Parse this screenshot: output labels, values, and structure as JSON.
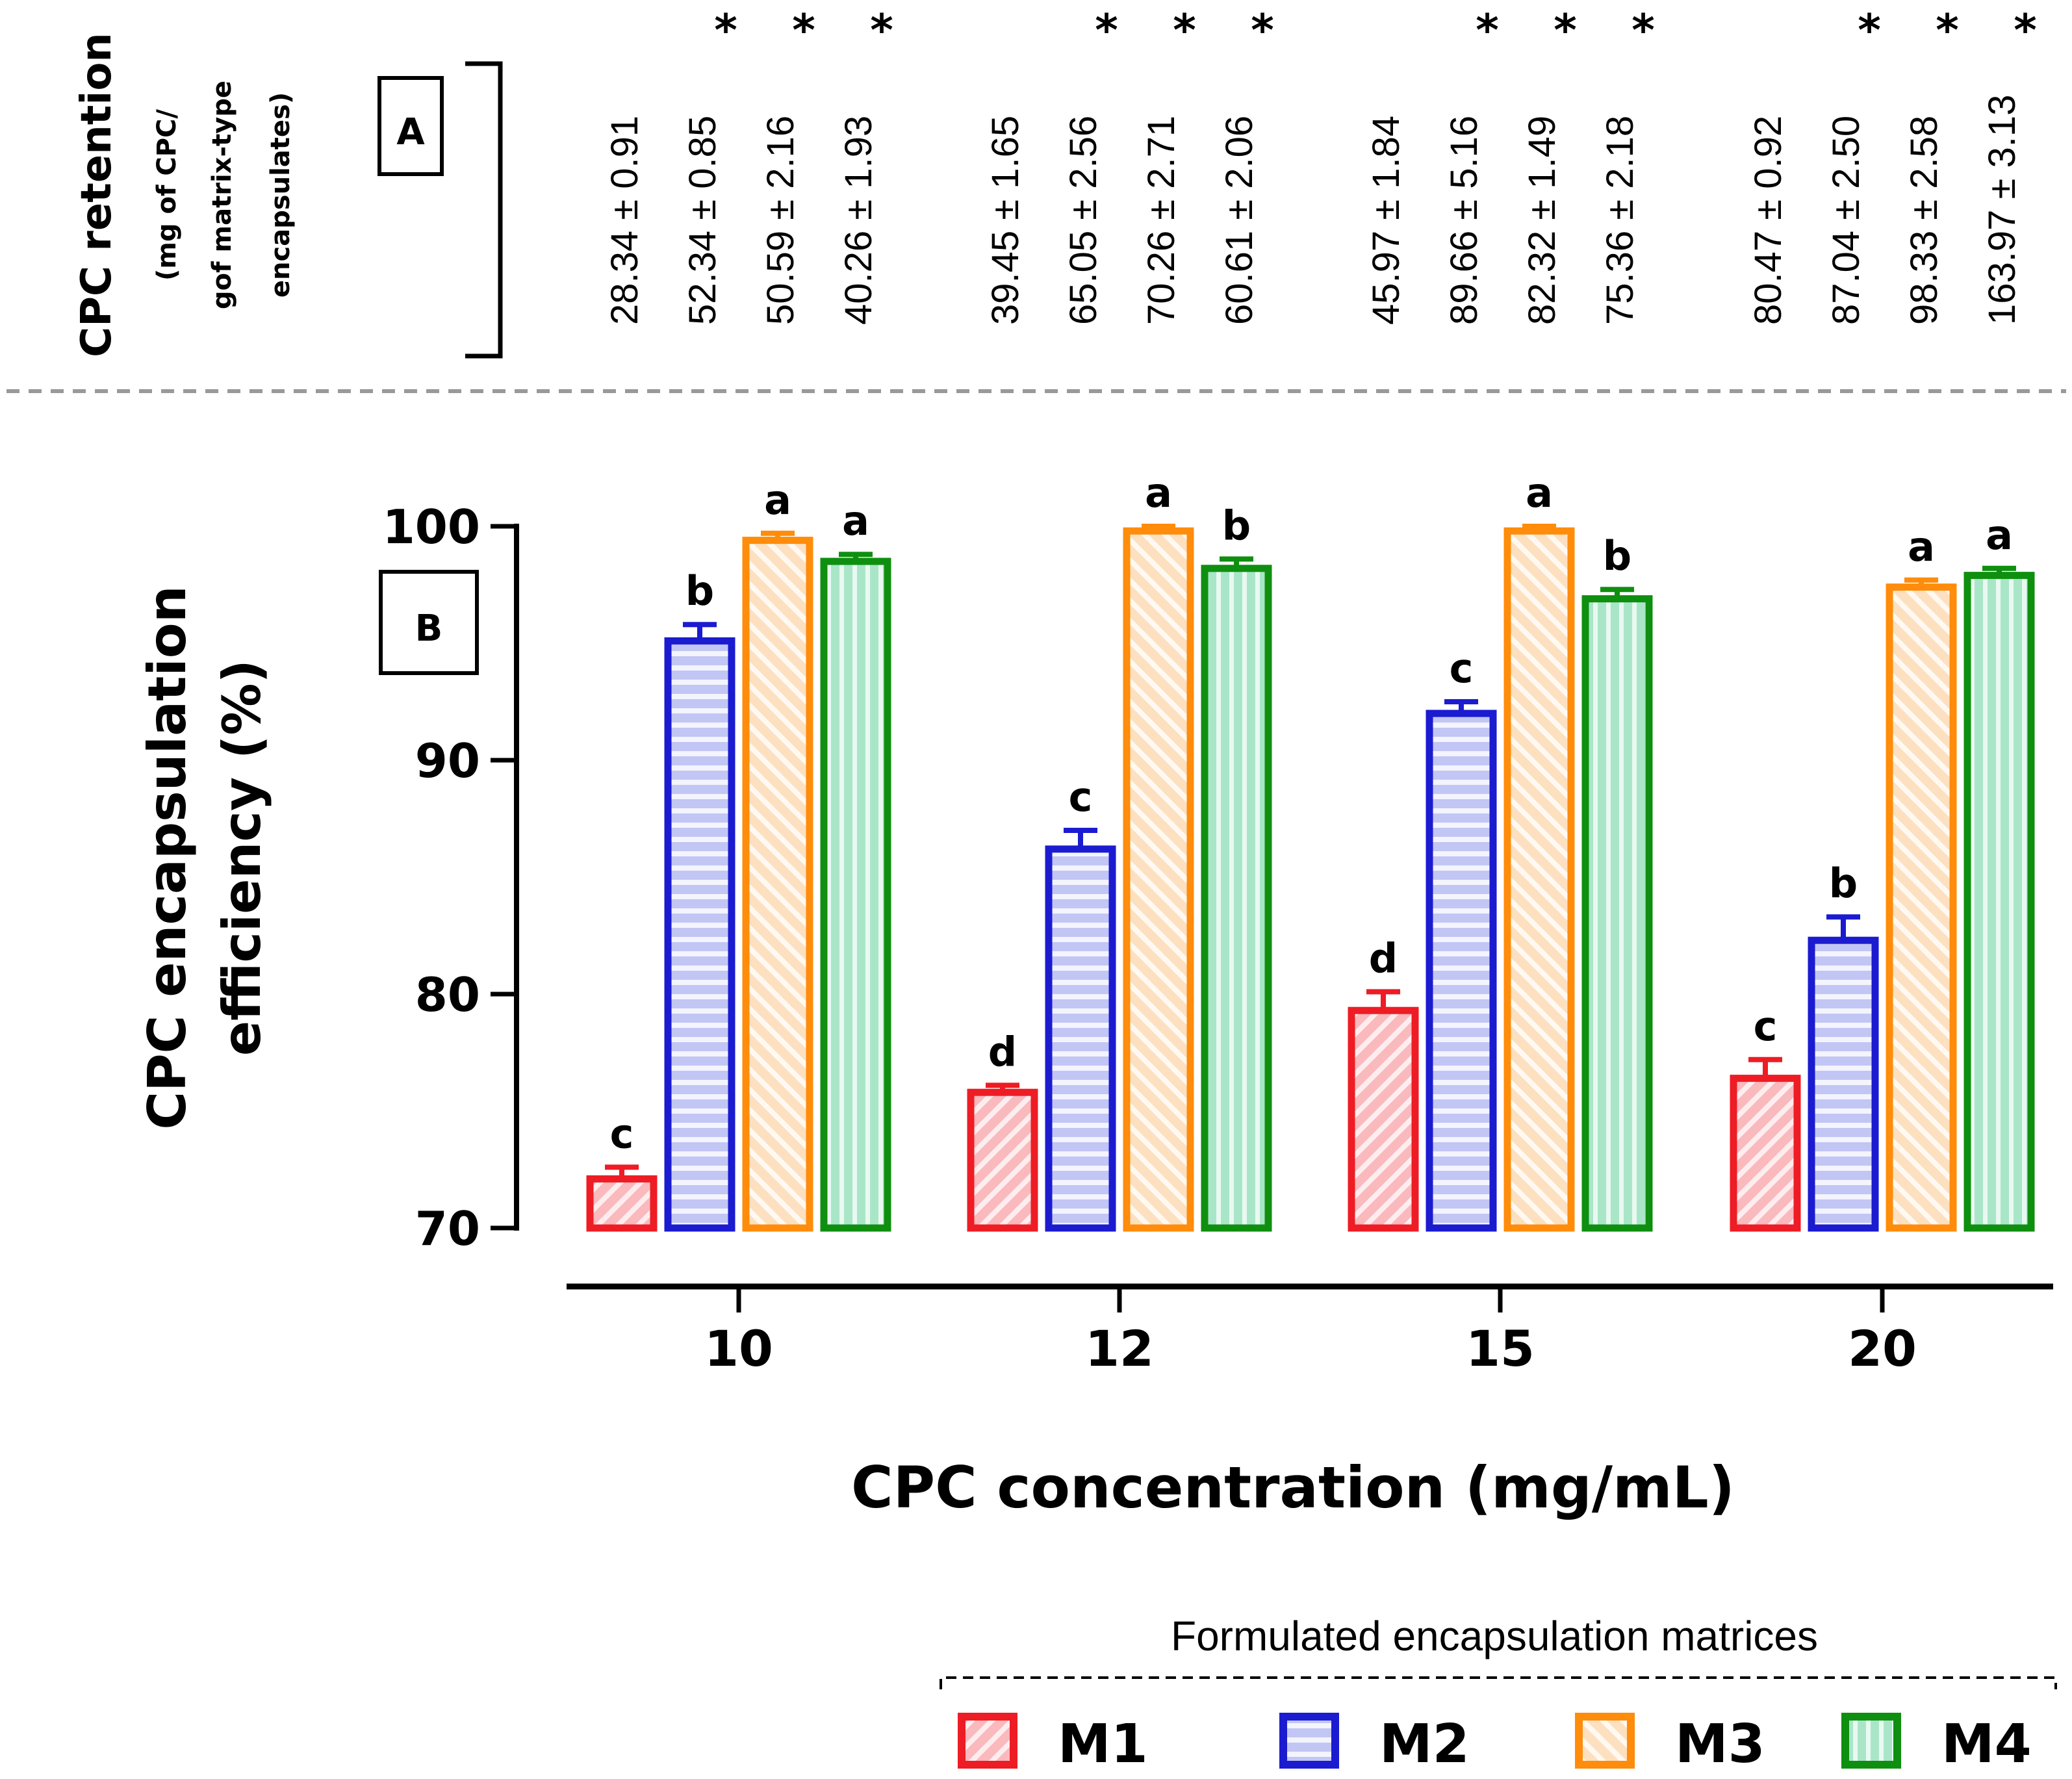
{
  "panel_a": {
    "label": "A",
    "title": "CPC retention",
    "subtitle_line1": "(mg of CPC/",
    "subtitle_line2": "gof matrix-type",
    "subtitle_line3": "encapsulates)",
    "significance_marker": "*",
    "retention": [
      {
        "text": "28.34 ± 0.91",
        "significant": false
      },
      {
        "text": "52.34 ± 0.85",
        "significant": true
      },
      {
        "text": "50.59 ± 2.16",
        "significant": true
      },
      {
        "text": "40.26 ± 1.93",
        "significant": true
      },
      {
        "text": "39.45 ± 1.65",
        "significant": false
      },
      {
        "text": "65.05 ± 2.56",
        "significant": true
      },
      {
        "text": "70.26 ± 2.71",
        "significant": true
      },
      {
        "text": "60.61 ± 2.06",
        "significant": true
      },
      {
        "text": "45.97 ± 1.84",
        "significant": false
      },
      {
        "text": "89.66 ± 5.16",
        "significant": true
      },
      {
        "text": "82.32 ± 1.49",
        "significant": true
      },
      {
        "text": "75.36 ± 2.18",
        "significant": true
      },
      {
        "text": "80.47 ± 0.92",
        "significant": false
      },
      {
        "text": "87.04 ± 2.50",
        "significant": true
      },
      {
        "text": "98.33 ± 2.58",
        "significant": true
      },
      {
        "text": "163.97 ± 3.13",
        "significant": true
      }
    ]
  },
  "panel_b": {
    "label": "B"
  },
  "legend": {
    "title": "Formulated encapsulation matrices"
  },
  "colors": {
    "M1": "#ee1c24",
    "M2": "#1b1bd0",
    "M3": "#ff8c0a",
    "M4": "#0f8f0f",
    "M1_fill": "#f9b9bd",
    "M2_fill": "#c2c6f4",
    "M3_fill": "#fde0c0",
    "M4_fill": "#a9e6c8"
  },
  "chart_data": {
    "type": "bar",
    "title": "",
    "xlabel": "CPC concentration (mg/mL)",
    "ylabel_line1": "CPC encapsulation",
    "ylabel_line2": "efficiency  (%)",
    "ylim": [
      70,
      100
    ],
    "yticks": [
      70,
      80,
      90,
      100
    ],
    "categories": [
      "10",
      "12",
      "15",
      "20"
    ],
    "series": [
      {
        "name": "M1",
        "values": [
          72.1,
          75.8,
          79.3,
          76.4
        ],
        "errors": [
          0.5,
          0.3,
          0.8,
          0.8
        ],
        "letters": [
          "c",
          "d",
          "d",
          "c"
        ]
      },
      {
        "name": "M2",
        "values": [
          95.1,
          86.2,
          92.0,
          82.3
        ],
        "errors": [
          0.7,
          0.8,
          0.5,
          1.0
        ],
        "letters": [
          "b",
          "c",
          "c",
          "b"
        ]
      },
      {
        "name": "M3",
        "values": [
          99.4,
          99.8,
          99.8,
          97.4
        ],
        "errors": [
          0.3,
          0.2,
          0.2,
          0.3
        ],
        "letters": [
          "a",
          "a",
          "a",
          "a"
        ]
      },
      {
        "name": "M4",
        "values": [
          98.5,
          98.2,
          96.9,
          97.9
        ],
        "errors": [
          0.3,
          0.4,
          0.4,
          0.3
        ],
        "letters": [
          "a",
          "b",
          "b",
          "a"
        ]
      }
    ]
  }
}
